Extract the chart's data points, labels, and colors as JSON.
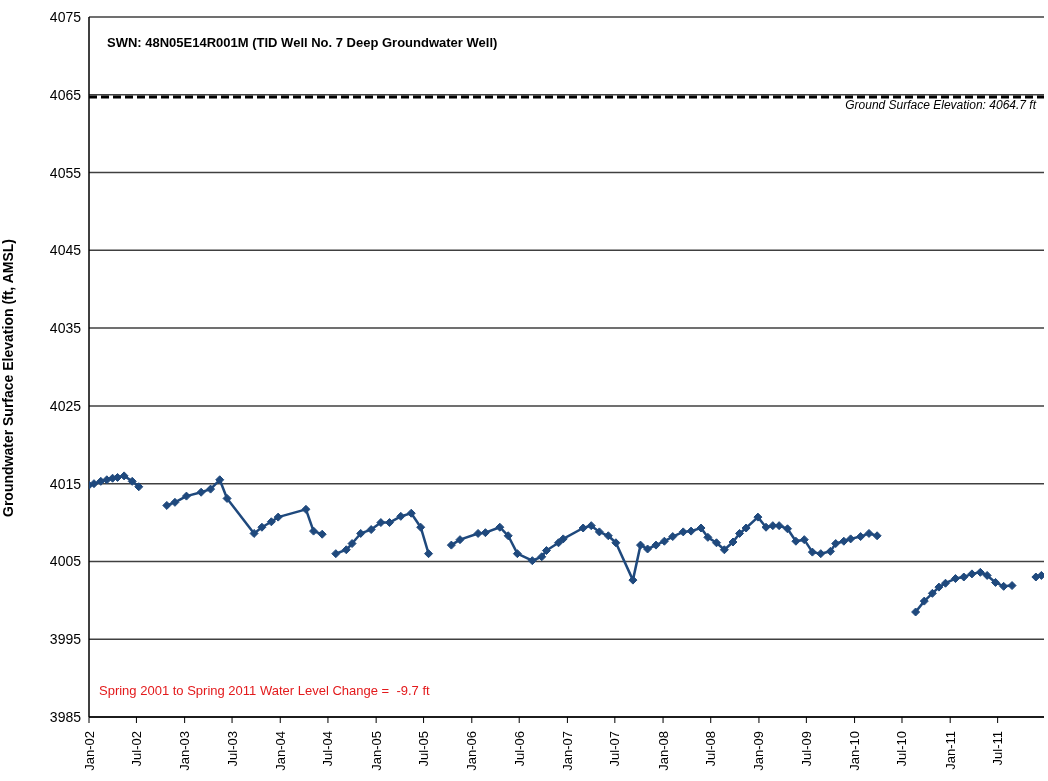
{
  "chart_data": {
    "type": "line",
    "title": "SWN: 48N05E14R001M (TID Well No. 7 Deep Groundwater Well)",
    "ylabel": "Groundwater Surface Elevation (ft, AMSL)",
    "annotations": [
      "Spring 2001 to Spring 2011 Water Level Change =  -9.7 ft"
    ],
    "x": [
      "2002-01-01",
      "2002-01-20",
      "2002-02-15",
      "2002-03-10",
      "2002-04-01",
      "2002-04-20",
      "2002-05-15",
      "2002-06-15",
      "2002-07-10",
      "2002-09-01",
      "2002-10-25",
      "2002-11-25",
      "2003-01-08",
      "2003-03-05",
      "2003-04-10",
      "2003-05-15",
      "2003-06-12",
      "2003-09-23",
      "2003-10-23",
      "2003-11-28",
      "2003-12-24",
      "2004-04-08",
      "2004-05-07",
      "2004-06-09",
      "2004-07-10",
      "2004-07-31",
      "2004-09-09",
      "2004-10-01",
      "2004-11-03",
      "2004-12-13",
      "2005-01-19",
      "2005-02-21",
      "2005-04-05",
      "2005-05-15",
      "2005-06-20",
      "2005-07-20",
      "2005-09-01",
      "2005-10-15",
      "2005-11-17",
      "2006-01-25",
      "2006-02-22",
      "2006-04-18",
      "2006-05-20",
      "2006-06-24",
      "2006-08-20",
      "2006-09-25",
      "2006-10-13",
      "2006-11-28",
      "2006-12-16",
      "2007-03-02",
      "2007-04-02",
      "2007-05-03",
      "2007-06-06",
      "2007-07-05",
      "2007-09-08",
      "2007-10-07",
      "2007-11-03",
      "2007-12-05",
      "2008-01-06",
      "2008-02-07",
      "2008-03-18",
      "2008-04-17",
      "2008-05-25",
      "2008-06-20",
      "2008-07-23",
      "2008-08-22",
      "2008-09-24",
      "2008-10-19",
      "2008-11-13",
      "2008-12-28",
      "2009-01-28",
      "2009-02-23",
      "2009-03-19",
      "2009-04-20",
      "2009-05-22",
      "2009-06-23",
      "2009-07-24",
      "2009-08-25",
      "2009-10-01",
      "2009-10-21",
      "2009-11-21",
      "2009-12-17",
      "2010-01-24",
      "2010-02-25",
      "2010-03-28",
      "2010-06-01",
      "2010-08-22",
      "2010-09-24",
      "2010-10-25",
      "2010-11-19",
      "2010-12-14",
      "2011-01-21",
      "2011-02-22",
      "2011-03-25",
      "2011-04-26",
      "2011-05-22",
      "2011-06-23",
      "2011-07-24",
      "2011-08-25",
      "2011-10-15",
      "2011-11-24",
      "2011-12-15"
    ],
    "series": [
      {
        "color": "#1f497d",
        "values": [
          4014.8,
          4015.0,
          4015.3,
          4015.5,
          4015.7,
          4015.8,
          4016.0,
          4015.3,
          4014.6,
          null,
          4012.2,
          4012.6,
          4013.4,
          4013.9,
          4014.3,
          4015.5,
          4013.1,
          4008.6,
          4009.4,
          4010.1,
          4010.7,
          4011.7,
          4008.9,
          4008.5,
          null,
          4006.0,
          4006.5,
          4007.3,
          4008.6,
          4009.1,
          4010.0,
          4010.0,
          4010.8,
          4011.2,
          4009.4,
          4006.0,
          null,
          4007.1,
          4007.8,
          4008.6,
          4008.7,
          4009.4,
          4008.3,
          4006.0,
          4005.1,
          4005.6,
          4006.4,
          4007.4,
          4007.9,
          4009.3,
          4009.6,
          4008.8,
          4008.3,
          4007.4,
          4002.6,
          4007.1,
          4006.6,
          4007.1,
          4007.6,
          4008.2,
          4008.8,
          4008.9,
          4009.3,
          4008.1,
          4007.4,
          4006.5,
          4007.5,
          4008.6,
          4009.3,
          4010.7,
          4009.4,
          4009.6,
          4009.6,
          4009.2,
          4007.6,
          4007.8,
          4006.2,
          4006.0,
          4006.3,
          4007.3,
          4007.6,
          4007.9,
          4008.2,
          4008.6,
          4008.3,
          null,
          3998.5,
          3999.9,
          4000.9,
          4001.7,
          4002.2,
          4002.8,
          4003.0,
          4003.4,
          4003.6,
          4003.2,
          4002.3,
          4001.8,
          4001.9,
          null,
          4003.0,
          4003.2
        ]
      }
    ],
    "xlim": [
      "2002-01-01",
      "2011-12-25"
    ],
    "xticks": [
      {
        "value": "2002-01",
        "label": "Jan-02"
      },
      {
        "value": "2002-07",
        "label": "Jul-02"
      },
      {
        "value": "2003-01",
        "label": "Jan-03"
      },
      {
        "value": "2003-07",
        "label": "Jul-03"
      },
      {
        "value": "2004-01",
        "label": "Jan-04"
      },
      {
        "value": "2004-07",
        "label": "Jul-04"
      },
      {
        "value": "2005-01",
        "label": "Jan-05"
      },
      {
        "value": "2005-07",
        "label": "Jul-05"
      },
      {
        "value": "2006-01",
        "label": "Jan-06"
      },
      {
        "value": "2006-07",
        "label": "Jul-06"
      },
      {
        "value": "2007-01",
        "label": "Jan-07"
      },
      {
        "value": "2007-07",
        "label": "Jul-07"
      },
      {
        "value": "2008-01",
        "label": "Jan-08"
      },
      {
        "value": "2008-07",
        "label": "Jul-08"
      },
      {
        "value": "2009-01",
        "label": "Jan-09"
      },
      {
        "value": "2009-07",
        "label": "Jul-09"
      },
      {
        "value": "2010-01",
        "label": "Jan-10"
      },
      {
        "value": "2010-07",
        "label": "Jul-10"
      },
      {
        "value": "2011-01",
        "label": "Jan-11"
      },
      {
        "value": "2011-07",
        "label": "Jul-11"
      }
    ],
    "ylim": [
      3985,
      4075
    ],
    "yticks": [
      3985,
      3995,
      4005,
      4015,
      4025,
      4035,
      4045,
      4055,
      4065,
      4075
    ],
    "ref_lines": [
      {
        "axis": "y",
        "value": 4064.7,
        "label": "Ground Surface Elevation: 4064.7 ft",
        "color": "#000000",
        "line_style": "dashed"
      }
    ],
    "grid": "y",
    "marker": "diamond",
    "line_style": "solid"
  }
}
